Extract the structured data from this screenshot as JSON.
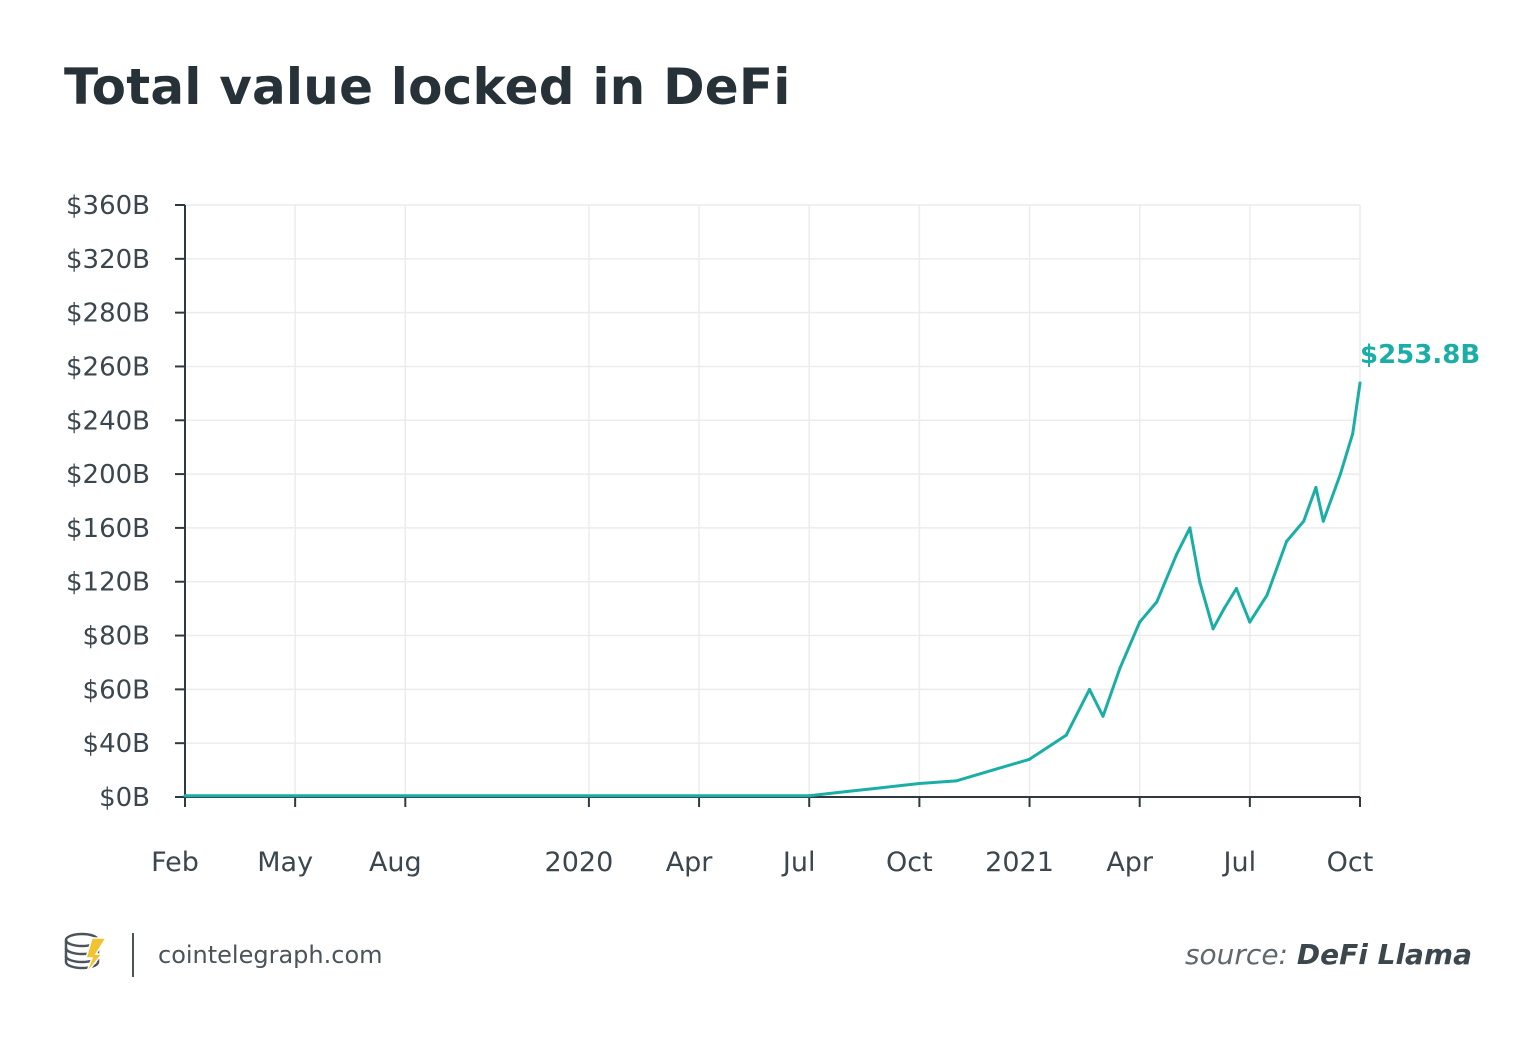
{
  "page": {
    "title": "Total value locked in DeFi"
  },
  "footer": {
    "site": "cointelegraph.com",
    "source_label": "source:",
    "source_name": "DeFi Llama",
    "logo_icon": "cointelegraph-logo-icon"
  },
  "colors": {
    "line": "#1aaea6",
    "axis": "#2f3a40",
    "grid": "#ececec",
    "text": "#3b474e",
    "annotation": "#1aaea6"
  },
  "chart_data": {
    "type": "line",
    "title": "Total value locked in DeFi",
    "xlabel": "",
    "ylabel": "",
    "grid": true,
    "legend": "none",
    "x_tick_labels": [
      "Feb",
      "May",
      "Aug",
      "2020",
      "Apr",
      "Jul",
      "Oct",
      "2021",
      "Apr",
      "Jul",
      "Oct"
    ],
    "x_ticks": [
      "2019-02",
      "2019-05",
      "2019-08",
      "2020-01",
      "2020-04",
      "2020-07",
      "2020-10",
      "2021-01",
      "2021-04",
      "2021-07",
      "2021-10"
    ],
    "y_tick_labels": [
      "$0B",
      "$40B",
      "$60B",
      "$80B",
      "$120B",
      "$160B",
      "$200B",
      "$240B",
      "$260B",
      "$280B",
      "$320B",
      "$360B"
    ],
    "y_tick_values": [
      0,
      40,
      60,
      80,
      120,
      160,
      200,
      240,
      260,
      280,
      320,
      360
    ],
    "annotation": {
      "label": "$253.8B",
      "x": "2021-10",
      "y": 253.8
    },
    "series": [
      {
        "values": [
          {
            "x": "2019-02",
            "y": 1
          },
          {
            "x": "2020-07",
            "y": 1
          },
          {
            "x": "2020-08",
            "y": 4
          },
          {
            "x": "2020-09",
            "y": 7
          },
          {
            "x": "2020-10",
            "y": 10
          },
          {
            "x": "2020-11",
            "y": 12
          },
          {
            "x": "2020-12",
            "y": 20
          },
          {
            "x": "2021-01",
            "y": 28
          },
          {
            "x": "2021-02",
            "y": 43
          },
          {
            "x": "2021-02-20",
            "y": 60
          },
          {
            "x": "2021-03",
            "y": 50
          },
          {
            "x": "2021-03-15",
            "y": 68
          },
          {
            "x": "2021-04",
            "y": 90
          },
          {
            "x": "2021-04-15",
            "y": 105
          },
          {
            "x": "2021-05",
            "y": 140
          },
          {
            "x": "2021-05-12",
            "y": 160
          },
          {
            "x": "2021-05-20",
            "y": 120
          },
          {
            "x": "2021-06",
            "y": 85
          },
          {
            "x": "2021-06-10",
            "y": 100
          },
          {
            "x": "2021-06-20",
            "y": 115
          },
          {
            "x": "2021-07",
            "y": 90
          },
          {
            "x": "2021-07-15",
            "y": 110
          },
          {
            "x": "2021-08",
            "y": 150
          },
          {
            "x": "2021-08-15",
            "y": 165
          },
          {
            "x": "2021-08-25",
            "y": 190
          },
          {
            "x": "2021-09",
            "y": 165
          },
          {
            "x": "2021-09-15",
            "y": 200
          },
          {
            "x": "2021-09-25",
            "y": 230
          },
          {
            "x": "2021-10",
            "y": 253.8
          }
        ]
      }
    ]
  }
}
